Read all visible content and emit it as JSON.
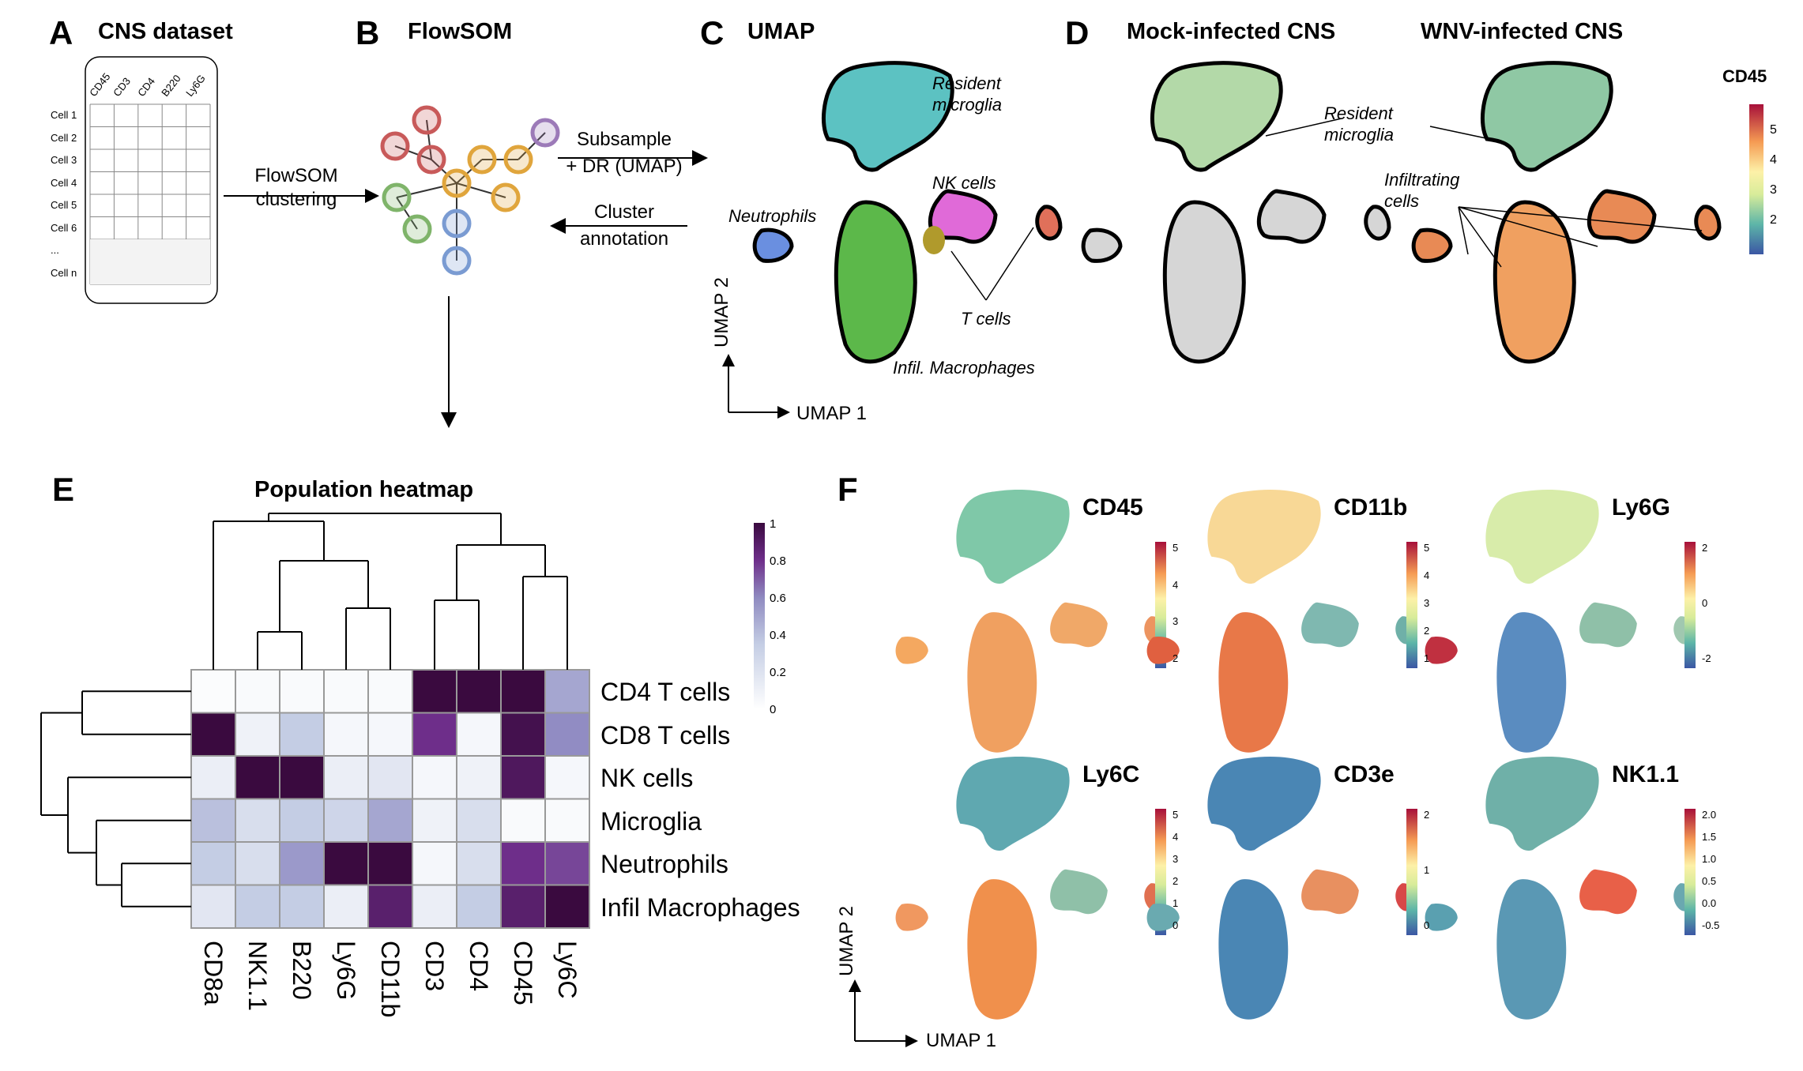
{
  "panelA": {
    "letter": "A",
    "title": "CNS dataset",
    "columns": [
      "CD45",
      "CD3",
      "CD4",
      "B220",
      "Ly6G"
    ],
    "rows": [
      "Cell 1",
      "Cell 2",
      "Cell 3",
      "Cell 4",
      "Cell 5",
      "Cell 6",
      "...",
      "Cell n"
    ],
    "arrow_label": [
      "FlowSOM",
      "clustering"
    ]
  },
  "panelB": {
    "letter": "B",
    "title": "FlowSOM",
    "arrow_right_label": [
      "Subsample",
      "+ DR (UMAP)"
    ],
    "arrow_left_label": [
      "Cluster",
      "annotation"
    ],
    "node_colors": [
      "#c85a5a",
      "#e0a53c",
      "#7fb46a",
      "#7a9bd2",
      "#9c7ab8"
    ]
  },
  "panelC": {
    "letter": "C",
    "title": "UMAP",
    "annotations": {
      "resident": [
        "Resident",
        "microglia"
      ],
      "nk": "NK cells",
      "neutrophils": "Neutrophils",
      "tcells": "T cells",
      "macrophages": "Infil. Macrophages"
    },
    "axis_x": "UMAP 1",
    "axis_y": "UMAP 2",
    "cluster_colors": {
      "microglia": "#5cc2c2",
      "nk": "#e06ad8",
      "neutrophils": "#6a8fe0",
      "macrophages": "#5cb84a",
      "tcells_cd4": "#b09a2c",
      "tcells_cd8": "#e0705a"
    }
  },
  "panelD": {
    "letter": "D",
    "title_mock": "Mock-infected CNS",
    "title_wnv": "WNV-infected CNS",
    "annotation_resident": [
      "Resident",
      "microglia"
    ],
    "annotation_infiltrating": [
      "Infiltrating",
      "cells"
    ],
    "colorbar_title": "CD45",
    "colorbar_ticks": [
      "5",
      "4",
      "3",
      "2"
    ]
  },
  "panelE": {
    "letter": "E",
    "title": "Population heatmap",
    "rows": [
      "CD4 T cells",
      "CD8 T cells",
      "NK cells",
      "Microglia",
      "Neutrophils",
      "Infil Macrophages"
    ],
    "columns": [
      "CD8a",
      "NK1.1",
      "B220",
      "Ly6G",
      "CD11b",
      "CD3",
      "CD4",
      "CD45",
      "Ly6C"
    ],
    "values": [
      [
        0.02,
        0.03,
        0.03,
        0.03,
        0.03,
        1.0,
        1.0,
        1.0,
        0.45
      ],
      [
        1.0,
        0.08,
        0.3,
        0.05,
        0.05,
        0.75,
        0.05,
        0.95,
        0.55
      ],
      [
        0.1,
        1.0,
        1.0,
        0.1,
        0.15,
        0.05,
        0.08,
        0.9,
        0.05
      ],
      [
        0.35,
        0.2,
        0.3,
        0.25,
        0.45,
        0.08,
        0.2,
        0.03,
        0.03
      ],
      [
        0.3,
        0.2,
        0.5,
        1.0,
        1.0,
        0.05,
        0.2,
        0.75,
        0.7
      ],
      [
        0.15,
        0.3,
        0.3,
        0.1,
        0.85,
        0.1,
        0.3,
        0.85,
        1.0
      ]
    ],
    "colorbar_ticks": [
      "1",
      "0.8",
      "0.6",
      "0.4",
      "0.2",
      "0"
    ]
  },
  "panelF": {
    "letter": "F",
    "markers": [
      {
        "name": "CD45",
        "ticks": [
          "5",
          "4",
          "3",
          "2"
        ]
      },
      {
        "name": "CD11b",
        "ticks": [
          "5",
          "4",
          "3",
          "2",
          "1"
        ]
      },
      {
        "name": "Ly6G",
        "ticks": [
          "2",
          "0",
          "-2"
        ]
      },
      {
        "name": "Ly6C",
        "ticks": [
          "5",
          "4",
          "3",
          "2",
          "1",
          "0"
        ]
      },
      {
        "name": "CD3e",
        "ticks": [
          "2",
          "1",
          "0"
        ]
      },
      {
        "name": "NK1.1",
        "ticks": [
          "2.0",
          "1.5",
          "1.0",
          "0.5",
          "0.0",
          "-0.5"
        ]
      }
    ],
    "axis_x": "UMAP 1",
    "axis_y": "UMAP 2"
  }
}
